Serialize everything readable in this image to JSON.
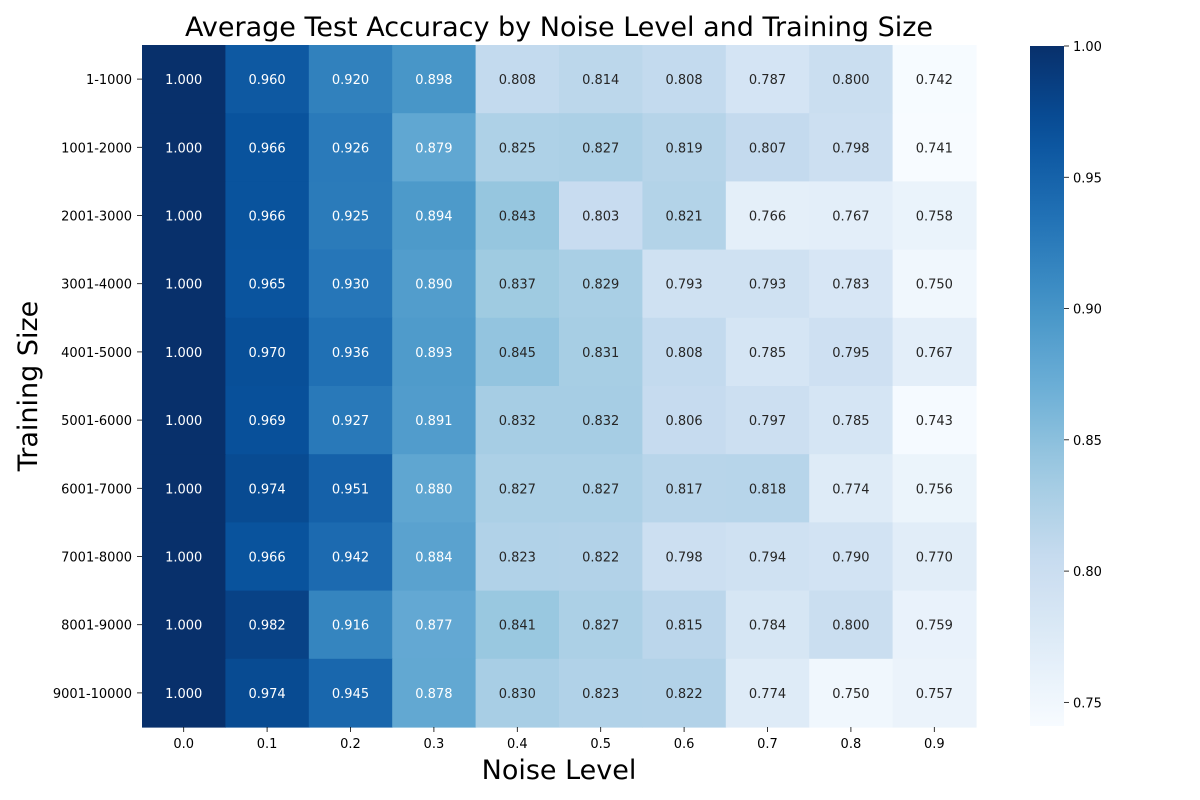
{
  "chart_data": {
    "type": "heatmap",
    "title": "Average Test Accuracy by Noise Level and Training Size",
    "xlabel": "Noise Level",
    "ylabel": "Training Size",
    "x_categories": [
      "0.0",
      "0.1",
      "0.2",
      "0.3",
      "0.4",
      "0.5",
      "0.6",
      "0.7",
      "0.8",
      "0.9"
    ],
    "y_categories": [
      "1-1000",
      "1001-2000",
      "2001-3000",
      "3001-4000",
      "4001-5000",
      "5001-6000",
      "6001-7000",
      "7001-8000",
      "8001-9000",
      "9001-10000"
    ],
    "values": [
      [
        1.0,
        0.96,
        0.92,
        0.898,
        0.808,
        0.814,
        0.808,
        0.787,
        0.8,
        0.742
      ],
      [
        1.0,
        0.966,
        0.926,
        0.879,
        0.825,
        0.827,
        0.819,
        0.807,
        0.798,
        0.741
      ],
      [
        1.0,
        0.966,
        0.925,
        0.894,
        0.843,
        0.803,
        0.821,
        0.766,
        0.767,
        0.758
      ],
      [
        1.0,
        0.965,
        0.93,
        0.89,
        0.837,
        0.829,
        0.793,
        0.793,
        0.783,
        0.75
      ],
      [
        1.0,
        0.97,
        0.936,
        0.893,
        0.845,
        0.831,
        0.808,
        0.785,
        0.795,
        0.767
      ],
      [
        1.0,
        0.969,
        0.927,
        0.891,
        0.832,
        0.832,
        0.806,
        0.797,
        0.785,
        0.743
      ],
      [
        1.0,
        0.974,
        0.951,
        0.88,
        0.827,
        0.827,
        0.817,
        0.818,
        0.774,
        0.756
      ],
      [
        1.0,
        0.966,
        0.942,
        0.884,
        0.823,
        0.822,
        0.798,
        0.794,
        0.79,
        0.77
      ],
      [
        1.0,
        0.982,
        0.916,
        0.877,
        0.841,
        0.827,
        0.815,
        0.784,
        0.8,
        0.759
      ],
      [
        1.0,
        0.974,
        0.945,
        0.878,
        0.83,
        0.823,
        0.822,
        0.774,
        0.75,
        0.757
      ]
    ],
    "value_format_decimals": 3,
    "colormap": "Blues",
    "vmin": 0.741,
    "vmax": 1.0,
    "colorbar_ticks": [
      "0.75",
      "0.80",
      "0.85",
      "0.90",
      "0.95",
      "1.00"
    ],
    "colorbar_tick_values": [
      0.75,
      0.8,
      0.85,
      0.9,
      0.95,
      1.0
    ],
    "legend_placement": "right"
  }
}
